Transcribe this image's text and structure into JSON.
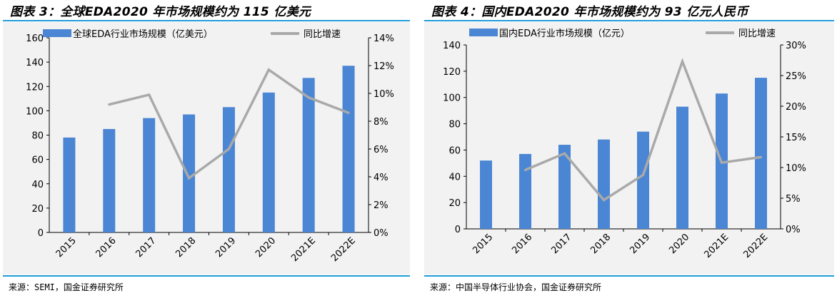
{
  "panels": [
    {
      "title": "图表 3：全球EDA2020 年市场规模约为 115 亿美元",
      "source": "来源：SEMI，国金证券研究所",
      "chart_data": {
        "type": "bar",
        "categories": [
          "2015",
          "2016",
          "2017",
          "2018",
          "2019",
          "2020",
          "2021E",
          "2022E"
        ],
        "series": [
          {
            "name": "全球EDA行业市场规模（亿美元）",
            "type": "bar",
            "axis": "left",
            "values": [
              78,
              85,
              94,
              97,
              103,
              115,
              127,
              137
            ]
          },
          {
            "name": "同比增速",
            "type": "line",
            "axis": "right",
            "unit": "%",
            "values": [
              null,
              9.2,
              9.9,
              3.9,
              6.0,
              11.7,
              9.7,
              8.6
            ]
          }
        ],
        "ylim_left": [
          0,
          160
        ],
        "yticks_left": [
          "0",
          "20",
          "40",
          "60",
          "80",
          "100",
          "120",
          "140",
          "160"
        ],
        "ylim_right": [
          0,
          14
        ],
        "yticks_right": [
          "0%",
          "2%",
          "4%",
          "6%",
          "8%",
          "10%",
          "12%",
          "14%"
        ],
        "colors": {
          "bar": "#4a86d4",
          "line": "#a9a9a9"
        },
        "legend": "top"
      }
    },
    {
      "title": "图表 4：国内EDA2020 年市场规模约为 93 亿元人民币",
      "source": "来源：中国半导体行业协会，国金证券研究所",
      "chart_data": {
        "type": "bar",
        "categories": [
          "2015",
          "2016",
          "2017",
          "2018",
          "2019",
          "2020",
          "2021E",
          "2022E"
        ],
        "series": [
          {
            "name": "国内EDA行业市场规模（亿元）",
            "type": "bar",
            "axis": "left",
            "values": [
              52,
              57,
              64,
              68,
              74,
              93,
              103,
              115
            ]
          },
          {
            "name": "同比增速",
            "type": "line",
            "axis": "right",
            "unit": "%",
            "values": [
              null,
              9.6,
              12.3,
              4.7,
              8.8,
              27.3,
              10.8,
              11.7
            ]
          }
        ],
        "ylim_left": [
          0,
          140
        ],
        "yticks_left": [
          "0",
          "20",
          "40",
          "60",
          "80",
          "100",
          "120",
          "140"
        ],
        "ylim_right": [
          0,
          30
        ],
        "yticks_right": [
          "0%",
          "5%",
          "10%",
          "15%",
          "20%",
          "25%",
          "30%"
        ],
        "colors": {
          "bar": "#4a86d4",
          "line": "#a9a9a9"
        },
        "legend": "top"
      }
    }
  ]
}
